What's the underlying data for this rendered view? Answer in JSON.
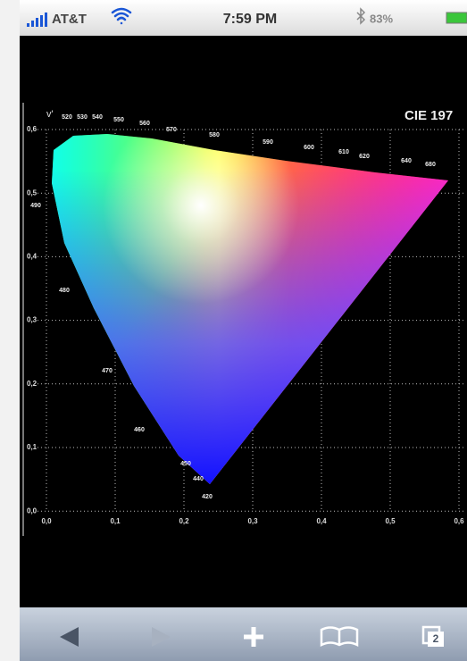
{
  "status_bar": {
    "carrier": "AT&T",
    "time": "7:59 PM",
    "battery": "83%"
  },
  "diagram": {
    "title": "CIE 197",
    "y_axis_label": "v'",
    "x_ticks": [
      "0,0",
      "0,1",
      "0,2",
      "0,3",
      "0,4",
      "0,5",
      "0,6"
    ],
    "y_ticks": [
      "0,6",
      "0,5",
      "0,4",
      "0,3",
      "0,2",
      "0,1",
      "0,0"
    ],
    "wavelengths": [
      "420",
      "440",
      "450",
      "460",
      "470",
      "480",
      "490",
      "520",
      "530",
      "540",
      "550",
      "560",
      "570",
      "580",
      "590",
      "600",
      "610",
      "620",
      "640",
      "680"
    ]
  },
  "toolbar": {
    "tabs_count": 2
  }
}
